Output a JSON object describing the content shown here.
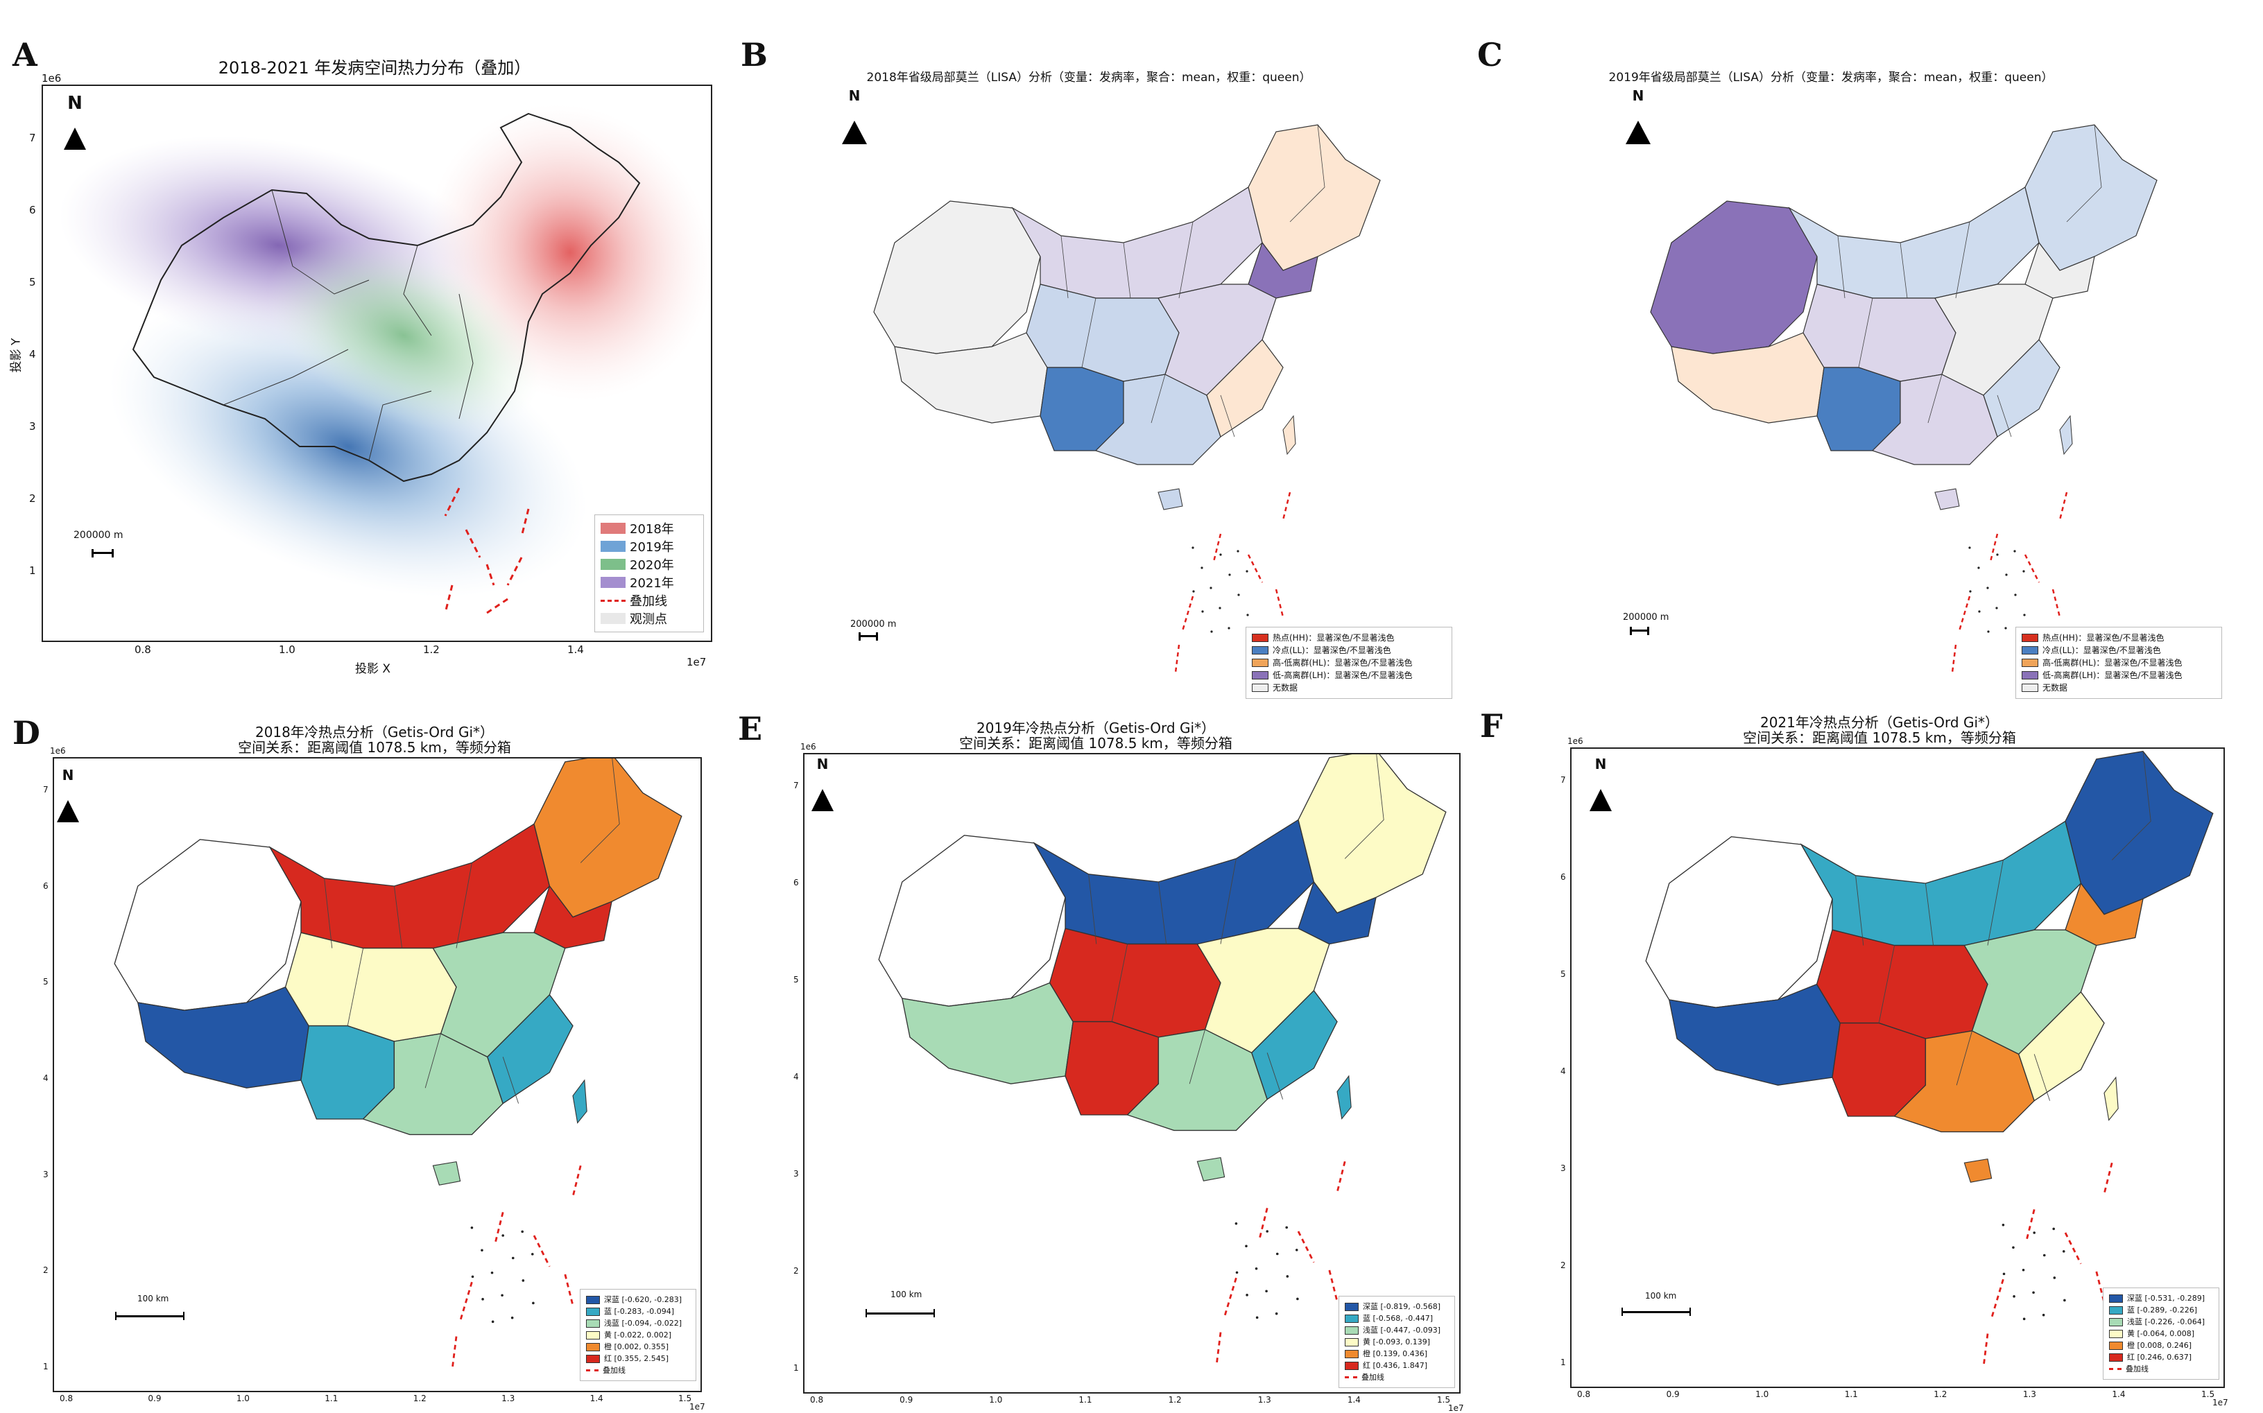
{
  "panels": {
    "A": {
      "label": "A",
      "title": "2018-2021 年发病空间热力分布（叠加）",
      "exponent": "1e6",
      "exponent_x": "1e7",
      "y_ticks": [
        "7",
        "6",
        "5",
        "4",
        "3",
        "2",
        "1"
      ],
      "x_ticks": [
        "0.8",
        "1.0",
        "1.2",
        "1.4"
      ],
      "xlabel": "投影 X",
      "ylabel": "投影 Y",
      "north": "N",
      "scale": "200000  m",
      "legend": [
        {
          "label": "2018年",
          "color": "#e07a7a"
        },
        {
          "label": "2019年",
          "color": "#6fa3d6"
        },
        {
          "label": "2020年",
          "color": "#7dbf8a"
        },
        {
          "label": "2021年",
          "color": "#a48ecf"
        },
        {
          "label": "叠加线",
          "color": "#e0201c",
          "dash": true
        },
        {
          "label": "观测点",
          "color": "#e8e8e8"
        }
      ]
    },
    "B": {
      "label": "B",
      "title": "2018年省级局部莫兰（LISA）分析（变量：发病率，聚合：mean，权重：queen）",
      "north": "N",
      "scale": "200000  m",
      "legend": [
        {
          "label": "热点(HH)：显著深色/不显著浅色",
          "color": "#d7301f"
        },
        {
          "label": "冷点(LL)：显著深色/不显著浅色",
          "color": "#4a7fc1"
        },
        {
          "label": "高-低离群(HL)：显著深色/不显著浅色",
          "color": "#f0a45a"
        },
        {
          "label": "低-高离群(LH)：显著深色/不显著浅色",
          "color": "#8a72b8"
        },
        {
          "label": "无数据",
          "color": "#eeeeee"
        }
      ]
    },
    "C": {
      "label": "C",
      "title": "2019年省级局部莫兰（LISA）分析（变量：发病率，聚合：mean，权重：queen）",
      "north": "N",
      "scale": "200000  m",
      "legend": [
        {
          "label": "热点(HH)：显著深色/不显著浅色",
          "color": "#d7301f"
        },
        {
          "label": "冷点(LL)：显著深色/不显著浅色",
          "color": "#4a7fc1"
        },
        {
          "label": "高-低离群(HL)：显著深色/不显著浅色",
          "color": "#f0a45a"
        },
        {
          "label": "低-高离群(LH)：显著深色/不显著浅色",
          "color": "#8a72b8"
        },
        {
          "label": "无数据",
          "color": "#eeeeee"
        }
      ]
    },
    "D": {
      "label": "D",
      "title_l1": "2018年冷热点分析（Getis-Ord Gi*）",
      "title_l2": "空间关系：距离阈值 1078.5 km，等频分箱",
      "exponent": "1e6",
      "exponent_x": "1e7",
      "y_ticks": [
        "7",
        "6",
        "5",
        "4",
        "3",
        "2",
        "1"
      ],
      "x_ticks": [
        "0.8",
        "0.9",
        "1.0",
        "1.1",
        "1.2",
        "1.3",
        "1.4",
        "1.5"
      ],
      "north": "N",
      "scale": "100 km",
      "legend": [
        {
          "label": "深蓝 [-0.620, -0.283]",
          "color": "#2357a6"
        },
        {
          "label": "蓝 [-0.283, -0.094]",
          "color": "#36a9c4"
        },
        {
          "label": "浅蓝 [-0.094, -0.022]",
          "color": "#a8dbb5"
        },
        {
          "label": "黄 [-0.022, 0.002]",
          "color": "#fdfbc6"
        },
        {
          "label": "橙 [0.002, 0.355]",
          "color": "#f08a2f"
        },
        {
          "label": "红 [0.355, 2.545]",
          "color": "#d7291f"
        },
        {
          "label": "叠加线",
          "color": "#e0201c",
          "dash": true
        }
      ]
    },
    "E": {
      "label": "E",
      "title_l1": "2019年冷热点分析（Getis-Ord Gi*）",
      "title_l2": "空间关系：距离阈值 1078.5 km，等频分箱",
      "exponent": "1e6",
      "exponent_x": "1e7",
      "y_ticks": [
        "7",
        "6",
        "5",
        "4",
        "3",
        "2",
        "1"
      ],
      "x_ticks": [
        "0.8",
        "0.9",
        "1.0",
        "1.1",
        "1.2",
        "1.3",
        "1.4",
        "1.5"
      ],
      "north": "N",
      "scale": "100 km",
      "legend": [
        {
          "label": "深蓝 [-0.819, -0.568]",
          "color": "#2357a6"
        },
        {
          "label": "蓝 [-0.568, -0.447]",
          "color": "#36a9c4"
        },
        {
          "label": "浅蓝 [-0.447, -0.093]",
          "color": "#a8dbb5"
        },
        {
          "label": "黄 [-0.093, 0.139]",
          "color": "#fdfbc6"
        },
        {
          "label": "橙 [0.139, 0.436]",
          "color": "#f08a2f"
        },
        {
          "label": "红 [0.436, 1.847]",
          "color": "#d7291f"
        },
        {
          "label": "叠加线",
          "color": "#e0201c",
          "dash": true
        }
      ]
    },
    "F": {
      "label": "F",
      "title_l1": "2021年冷热点分析（Getis-Ord Gi*）",
      "title_l2": "空间关系：距离阈值 1078.5 km，等频分箱",
      "exponent": "1e6",
      "exponent_x": "1e7",
      "y_ticks": [
        "7",
        "6",
        "5",
        "4",
        "3",
        "2",
        "1"
      ],
      "x_ticks": [
        "0.8",
        "0.9",
        "1.0",
        "1.1",
        "1.2",
        "1.3",
        "1.4",
        "1.5"
      ],
      "north": "N",
      "scale": "100 km",
      "legend": [
        {
          "label": "深蓝 [-0.531, -0.289]",
          "color": "#2357a6"
        },
        {
          "label": "蓝 [-0.289, -0.226]",
          "color": "#36a9c4"
        },
        {
          "label": "浅蓝 [-0.226, -0.064]",
          "color": "#a8dbb5"
        },
        {
          "label": "黄 [-0.064, 0.008]",
          "color": "#fdfbc6"
        },
        {
          "label": "橙 [0.008, 0.246]",
          "color": "#f08a2f"
        },
        {
          "label": "红 [0.246, 0.637]",
          "color": "#d7291f"
        },
        {
          "label": "叠加线",
          "color": "#e0201c",
          "dash": true
        }
      ]
    }
  },
  "region_colors": {
    "B": {
      "west": "#f0f0f0",
      "tibet": "#f0f0f0",
      "north": "#dcd6ea",
      "northeast": "#fde6d2",
      "ne_dark": "#8a72b8",
      "center": "#c9d7ec",
      "sw_cold": "#4a7fc1",
      "south": "#c9d7ec",
      "east": "#dcd6ea",
      "southeast": "#fde6d2"
    },
    "C": {
      "west": "#8a72b8",
      "tibet": "#fde6d2",
      "north": "#cfdcee",
      "northeast": "#cfdcee",
      "ne_dark": "#eeeeee",
      "center": "#dcd6ea",
      "sw_cold": "#4a7fc1",
      "south": "#dcd6ea",
      "east": "#eeeeee",
      "southeast": "#cfdcee"
    },
    "D": {
      "west": "#ffffff",
      "tibet": "#2357a6",
      "north": "#d7291f",
      "northeast": "#f08a2f",
      "ne_dark": "#d7291f",
      "center": "#fdfbc6",
      "sw_cold": "#36a9c4",
      "south": "#a8dbb5",
      "east": "#a8dbb5",
      "southeast": "#36a9c4"
    },
    "E": {
      "west": "#ffffff",
      "tibet": "#a8dbb5",
      "north": "#2357a6",
      "northeast": "#fdfbc6",
      "ne_dark": "#2357a6",
      "center": "#d7291f",
      "sw_cold": "#d7291f",
      "south": "#a8dbb5",
      "east": "#fdfbc6",
      "southeast": "#36a9c4"
    },
    "F": {
      "west": "#ffffff",
      "tibet": "#2357a6",
      "north": "#36a9c4",
      "northeast": "#2357a6",
      "ne_dark": "#f08a2f",
      "center": "#d7291f",
      "sw_cold": "#d7291f",
      "south": "#f08a2f",
      "east": "#a8dbb5",
      "southeast": "#fdfbc6"
    }
  }
}
